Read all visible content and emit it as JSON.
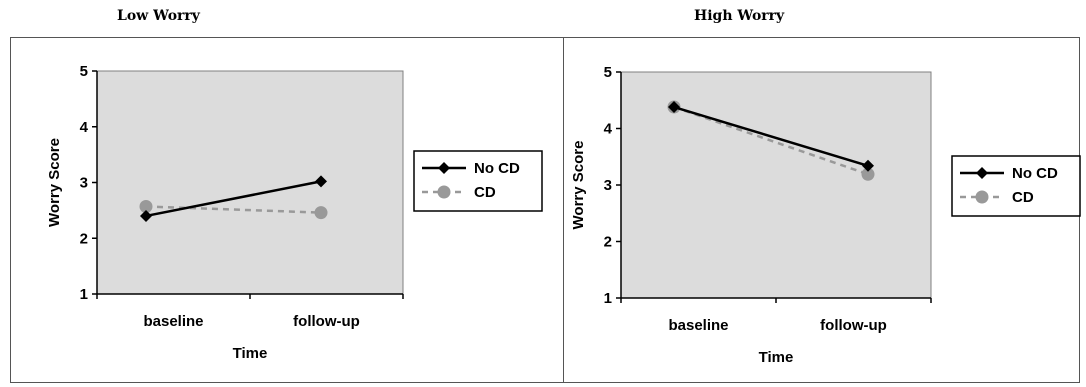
{
  "chart_data": [
    {
      "type": "line",
      "title": "Low Worry",
      "xlabel": "Time",
      "ylabel": "Worry Score",
      "categories": [
        "baseline",
        "follow-up"
      ],
      "ylim": [
        1,
        5
      ],
      "yticks": [
        "1",
        "2",
        "3",
        "4",
        "5"
      ],
      "legend_position": "right",
      "series": [
        {
          "name": "No CD",
          "values": [
            2.4,
            3.02
          ],
          "color": "#000000",
          "style": "solid",
          "marker": "diamond"
        },
        {
          "name": "CD",
          "values": [
            2.57,
            2.46
          ],
          "color": "#999999",
          "style": "dashed",
          "marker": "circle"
        }
      ]
    },
    {
      "type": "line",
      "title": "High Worry",
      "xlabel": "Time",
      "ylabel": "Worry Score",
      "categories": [
        "baseline",
        "follow-up"
      ],
      "ylim": [
        1,
        5
      ],
      "yticks": [
        "1",
        "2",
        "3",
        "4",
        "5"
      ],
      "legend_position": "right",
      "series": [
        {
          "name": "No CD",
          "values": [
            4.38,
            3.34
          ],
          "color": "#000000",
          "style": "solid",
          "marker": "diamond"
        },
        {
          "name": "CD",
          "values": [
            4.38,
            3.19
          ],
          "color": "#999999",
          "style": "dashed",
          "marker": "circle"
        }
      ]
    }
  ],
  "colors": {
    "plot_area": "#dcdcdc",
    "axis": "#000000"
  }
}
